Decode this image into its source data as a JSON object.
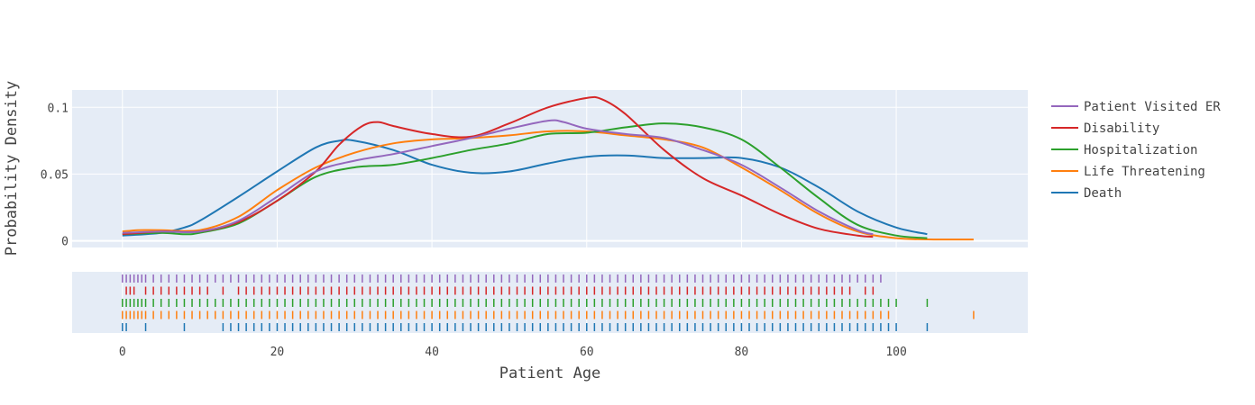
{
  "chart_data": {
    "type": "line",
    "subtype": "distplot-kde-with-rug",
    "xlabel": "Patient Age",
    "ylabel": "Probability Density",
    "xlim": [
      -6.5,
      117
    ],
    "ylim": [
      -0.005,
      0.113
    ],
    "x_ticks": [
      0,
      20,
      40,
      60,
      80,
      100
    ],
    "x_tick_labels": [
      "0",
      "20",
      "40",
      "60",
      "80",
      "100"
    ],
    "y_ticks": [
      0,
      0.05,
      0.1
    ],
    "y_tick_labels": [
      "0",
      "0.05",
      "0.1"
    ],
    "grid": true,
    "legend_position": "right",
    "series": [
      {
        "name": "Patient Visited ER",
        "color": "#9467bd",
        "x": [
          0,
          5,
          10,
          15,
          20,
          25,
          30,
          35,
          40,
          45,
          50,
          55,
          57,
          60,
          65,
          70,
          75,
          80,
          85,
          90,
          95,
          97
        ],
        "y": [
          0.006,
          0.007,
          0.007,
          0.015,
          0.033,
          0.052,
          0.06,
          0.065,
          0.071,
          0.077,
          0.084,
          0.09,
          0.089,
          0.084,
          0.08,
          0.077,
          0.068,
          0.057,
          0.04,
          0.022,
          0.008,
          0.005
        ],
        "rug": [
          0,
          0.5,
          1,
          1.5,
          2,
          2.5,
          3,
          4,
          5,
          6,
          7,
          8,
          9,
          10,
          11,
          12,
          13,
          14,
          15,
          16,
          17,
          18,
          19,
          20,
          21,
          22,
          23,
          24,
          25,
          26,
          27,
          28,
          29,
          30,
          31,
          32,
          33,
          34,
          35,
          36,
          37,
          38,
          39,
          40,
          41,
          42,
          43,
          44,
          45,
          46,
          47,
          48,
          49,
          50,
          51,
          52,
          53,
          54,
          55,
          56,
          57,
          58,
          59,
          60,
          61,
          62,
          63,
          64,
          65,
          66,
          67,
          68,
          69,
          70,
          71,
          72,
          73,
          74,
          75,
          76,
          77,
          78,
          79,
          80,
          81,
          82,
          83,
          84,
          85,
          86,
          87,
          88,
          89,
          90,
          91,
          92,
          93,
          94,
          95,
          96,
          97,
          98
        ]
      },
      {
        "name": "Disability",
        "color": "#d62728",
        "x": [
          0,
          5,
          10,
          15,
          20,
          25,
          28,
          31,
          33,
          35,
          40,
          45,
          50,
          55,
          60,
          62,
          65,
          70,
          75,
          80,
          85,
          90,
          95,
          97
        ],
        "y": [
          0.005,
          0.007,
          0.007,
          0.014,
          0.03,
          0.052,
          0.072,
          0.086,
          0.089,
          0.086,
          0.08,
          0.078,
          0.088,
          0.1,
          0.107,
          0.106,
          0.095,
          0.068,
          0.047,
          0.034,
          0.02,
          0.009,
          0.004,
          0.003
        ],
        "rug": [
          0.5,
          1,
          1.5,
          3,
          4,
          5,
          6,
          7,
          8,
          9,
          10,
          11,
          13,
          15,
          16,
          17,
          18,
          19,
          20,
          21,
          22,
          23,
          24,
          25,
          26,
          27,
          28,
          29,
          30,
          31,
          32,
          33,
          34,
          35,
          36,
          37,
          38,
          39,
          40,
          41,
          42,
          43,
          44,
          45,
          46,
          47,
          48,
          49,
          50,
          51,
          52,
          53,
          54,
          55,
          56,
          57,
          58,
          59,
          60,
          61,
          62,
          63,
          64,
          65,
          66,
          67,
          68,
          69,
          70,
          71,
          72,
          73,
          74,
          75,
          76,
          77,
          78,
          79,
          80,
          81,
          82,
          83,
          84,
          85,
          86,
          87,
          88,
          89,
          90,
          91,
          92,
          93,
          94,
          96,
          97
        ]
      },
      {
        "name": "Hospitalization",
        "color": "#2ca02c",
        "x": [
          0,
          5,
          8,
          10,
          15,
          20,
          25,
          30,
          35,
          40,
          45,
          50,
          55,
          60,
          65,
          70,
          75,
          80,
          85,
          90,
          95,
          100,
          104
        ],
        "y": [
          0.005,
          0.006,
          0.005,
          0.006,
          0.013,
          0.03,
          0.048,
          0.055,
          0.057,
          0.062,
          0.068,
          0.073,
          0.08,
          0.081,
          0.085,
          0.088,
          0.085,
          0.076,
          0.055,
          0.032,
          0.012,
          0.004,
          0.002
        ],
        "rug": [
          0,
          0.5,
          1,
          1.5,
          2,
          2.5,
          3,
          4,
          5,
          6,
          7,
          8,
          9,
          10,
          11,
          12,
          13,
          14,
          15,
          16,
          17,
          18,
          19,
          20,
          21,
          22,
          23,
          24,
          25,
          26,
          27,
          28,
          29,
          30,
          31,
          32,
          33,
          34,
          35,
          36,
          37,
          38,
          39,
          40,
          41,
          42,
          43,
          44,
          45,
          46,
          47,
          48,
          49,
          50,
          51,
          52,
          53,
          54,
          55,
          56,
          57,
          58,
          59,
          60,
          61,
          62,
          63,
          64,
          65,
          66,
          67,
          68,
          69,
          70,
          71,
          72,
          73,
          74,
          75,
          76,
          77,
          78,
          79,
          80,
          81,
          82,
          83,
          84,
          85,
          86,
          87,
          88,
          89,
          90,
          91,
          92,
          93,
          94,
          95,
          96,
          97,
          98,
          99,
          100,
          104
        ]
      },
      {
        "name": "Life Threatening",
        "color": "#ff7f0e",
        "x": [
          0,
          2,
          5,
          10,
          15,
          20,
          25,
          30,
          35,
          40,
          45,
          50,
          55,
          60,
          65,
          70,
          75,
          80,
          85,
          90,
          95,
          100,
          105,
          110
        ],
        "y": [
          0.007,
          0.008,
          0.008,
          0.008,
          0.018,
          0.038,
          0.055,
          0.066,
          0.073,
          0.076,
          0.077,
          0.079,
          0.082,
          0.082,
          0.079,
          0.076,
          0.07,
          0.055,
          0.038,
          0.02,
          0.007,
          0.002,
          0.001,
          0.001
        ],
        "rug": [
          0,
          0.5,
          1,
          1.5,
          2,
          2.5,
          3,
          4,
          5,
          6,
          7,
          8,
          9,
          10,
          11,
          12,
          13,
          14,
          15,
          16,
          17,
          18,
          19,
          20,
          21,
          22,
          23,
          24,
          25,
          26,
          27,
          28,
          29,
          30,
          31,
          32,
          33,
          34,
          35,
          36,
          37,
          38,
          39,
          40,
          41,
          42,
          43,
          44,
          45,
          46,
          47,
          48,
          49,
          50,
          51,
          52,
          53,
          54,
          55,
          56,
          57,
          58,
          59,
          60,
          61,
          62,
          63,
          64,
          65,
          66,
          67,
          68,
          69,
          70,
          71,
          72,
          73,
          74,
          75,
          76,
          77,
          78,
          79,
          80,
          81,
          82,
          83,
          84,
          85,
          86,
          87,
          88,
          89,
          90,
          91,
          92,
          93,
          94,
          95,
          96,
          97,
          98,
          99,
          110
        ]
      },
      {
        "name": "Death",
        "color": "#1f77b4",
        "x": [
          0,
          5,
          8,
          10,
          15,
          20,
          25,
          28,
          30,
          35,
          40,
          45,
          50,
          55,
          60,
          65,
          70,
          75,
          80,
          85,
          90,
          95,
          100,
          104
        ],
        "y": [
          0.004,
          0.006,
          0.01,
          0.015,
          0.033,
          0.052,
          0.07,
          0.075,
          0.075,
          0.068,
          0.057,
          0.051,
          0.052,
          0.058,
          0.063,
          0.064,
          0.062,
          0.062,
          0.062,
          0.055,
          0.04,
          0.022,
          0.01,
          0.005
        ],
        "rug": [
          0,
          0.5,
          3,
          8,
          13,
          14,
          15,
          16,
          17,
          18,
          19,
          20,
          21,
          22,
          23,
          24,
          25,
          26,
          27,
          28,
          29,
          30,
          31,
          32,
          33,
          34,
          35,
          36,
          37,
          38,
          39,
          40,
          41,
          42,
          43,
          44,
          45,
          46,
          47,
          48,
          49,
          50,
          51,
          52,
          53,
          54,
          55,
          56,
          57,
          58,
          59,
          60,
          61,
          62,
          63,
          64,
          65,
          66,
          67,
          68,
          69,
          70,
          71,
          72,
          73,
          74,
          75,
          76,
          77,
          78,
          79,
          80,
          81,
          82,
          83,
          84,
          85,
          86,
          87,
          88,
          89,
          90,
          91,
          92,
          93,
          94,
          95,
          96,
          97,
          98,
          99,
          100,
          104
        ]
      }
    ]
  }
}
